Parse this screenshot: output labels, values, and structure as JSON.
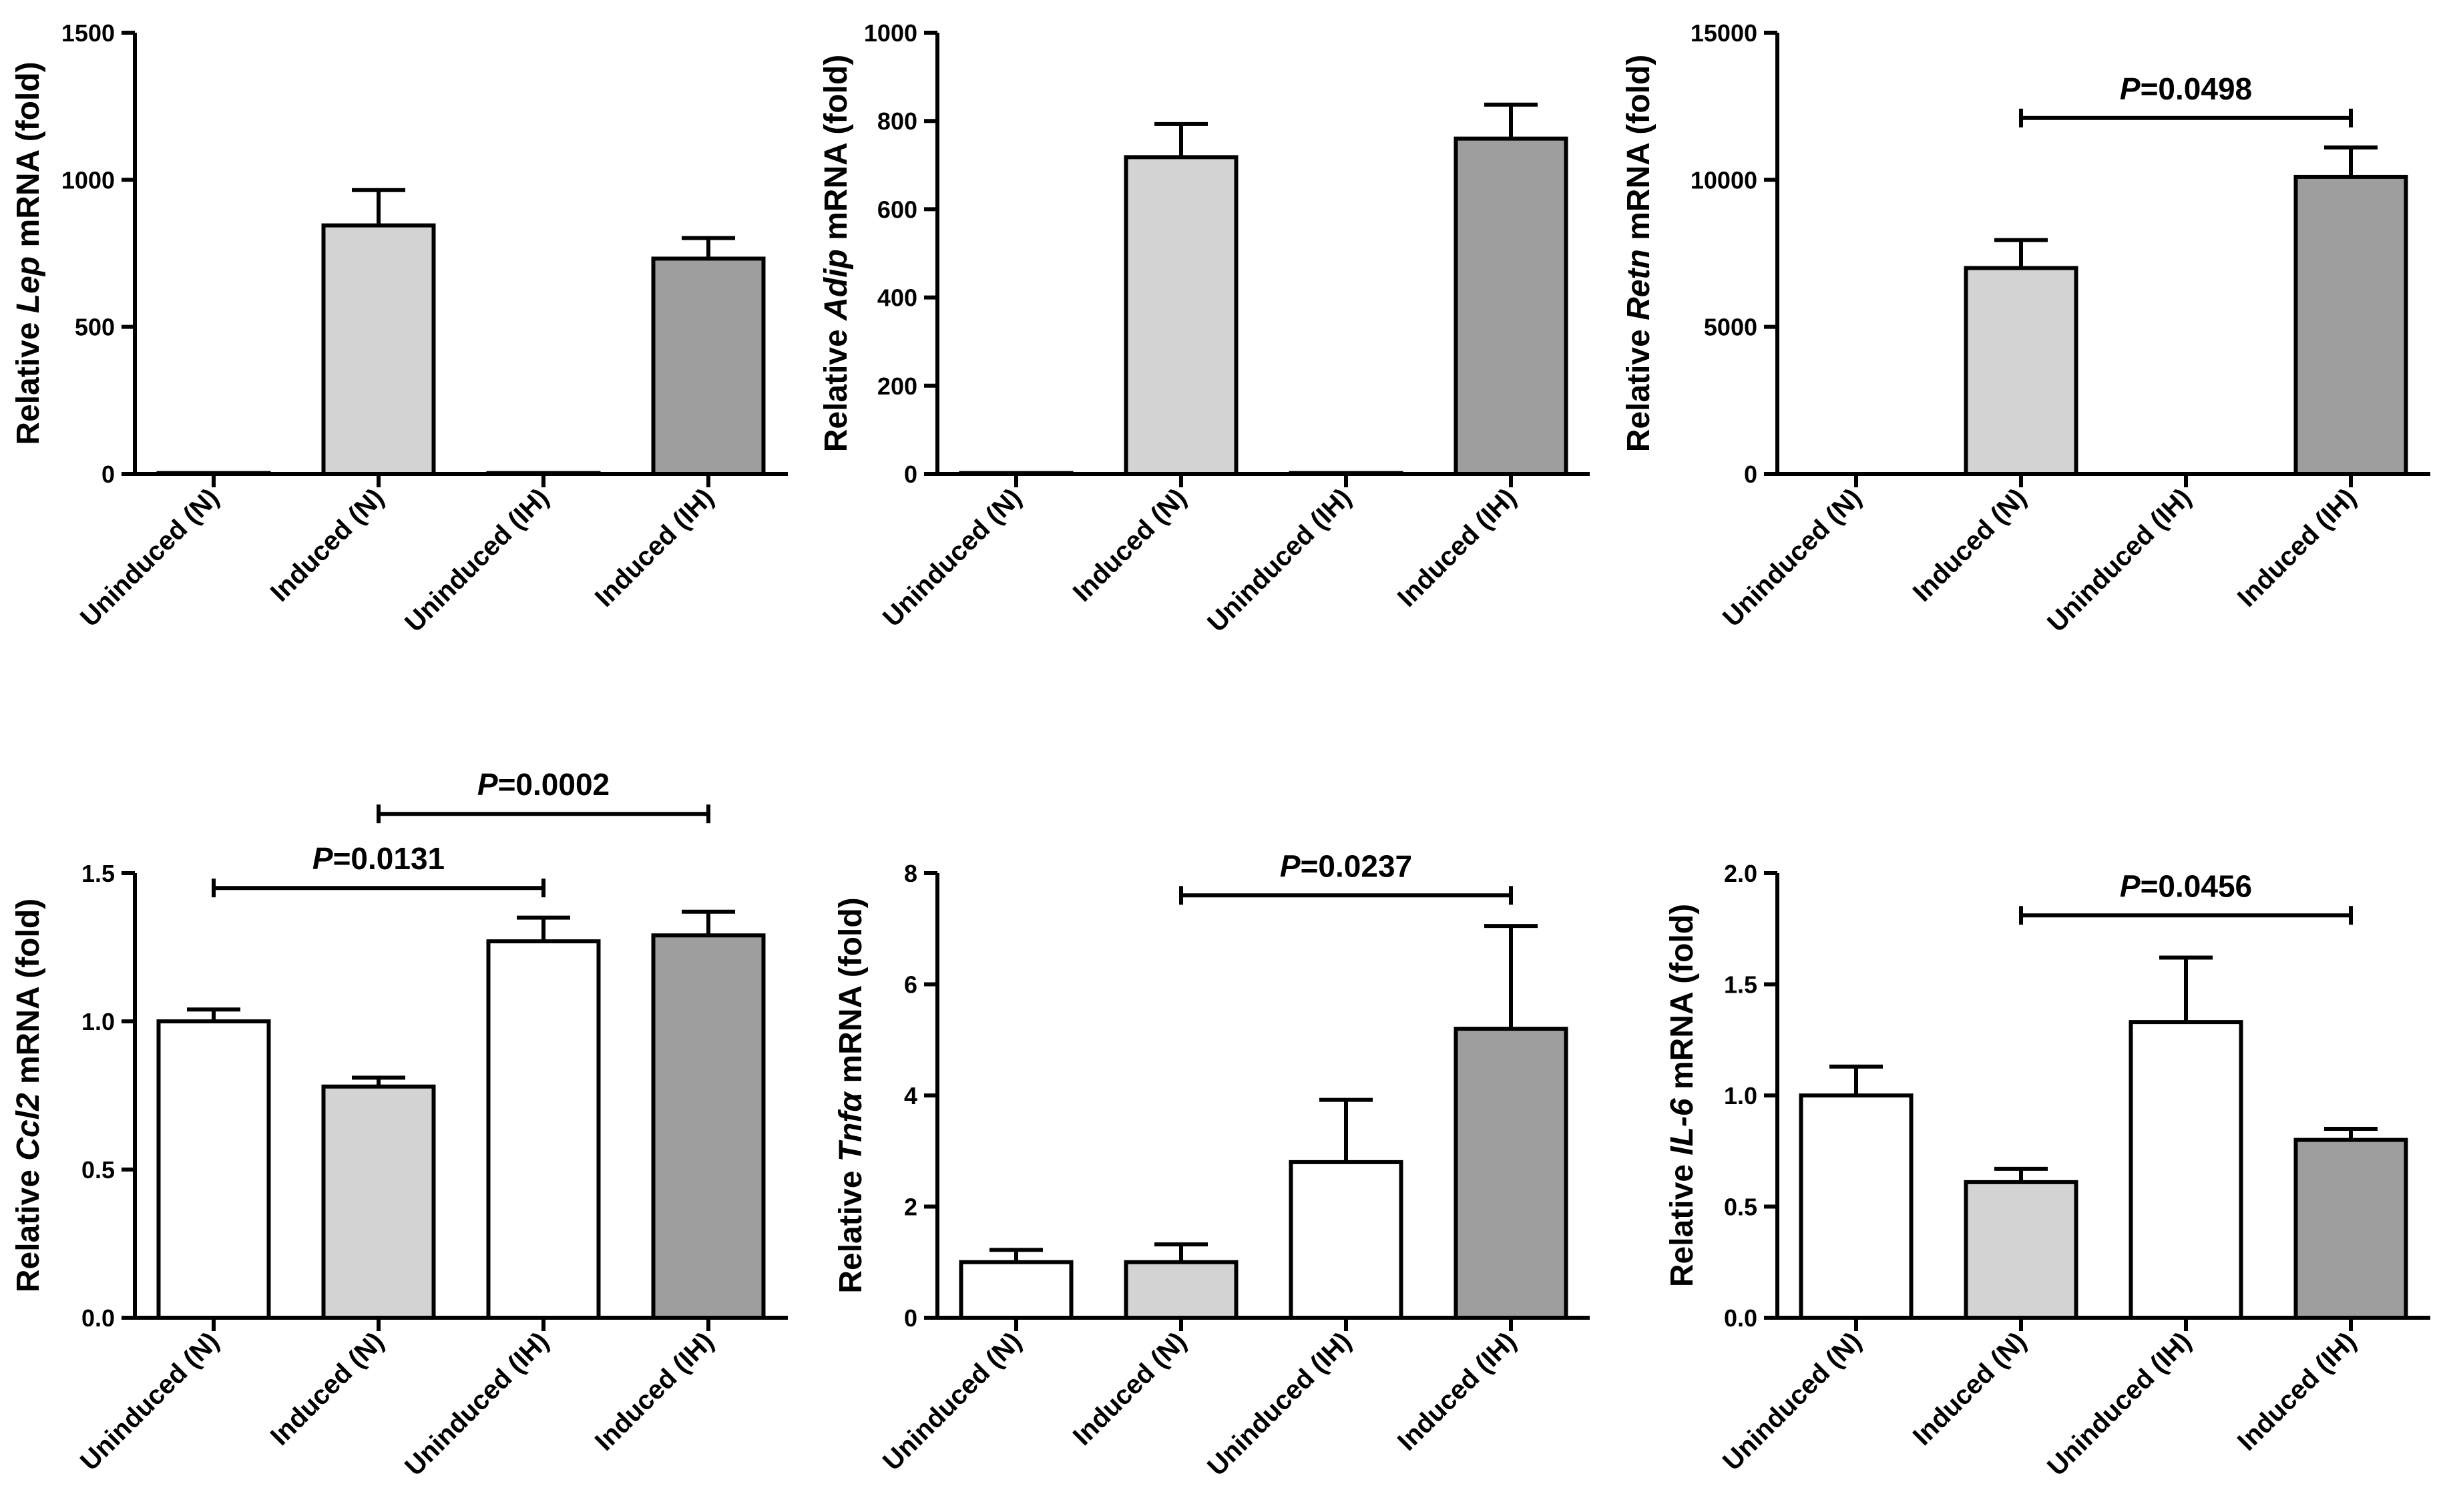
{
  "chart_data": [
    {
      "type": "bar",
      "ylabel_prefix": "Relative ",
      "ylabel_gene": "Lep",
      "ylabel_suffix": " mRNA (fold)",
      "categories": [
        "Uninduced (N)",
        "Induced (N)",
        "Uninduced (IH)",
        "Induced (IH)"
      ],
      "values": [
        3,
        845,
        3,
        732
      ],
      "errors": [
        0,
        120,
        0,
        70
      ],
      "fills": [
        "#ffffff",
        "#d3d3d3",
        "#ffffff",
        "#9e9e9e"
      ],
      "ylim": [
        0,
        1500
      ],
      "yticks": [
        0,
        500,
        1000,
        1500
      ],
      "ytick_labels": [
        "0",
        "500",
        "1000",
        "1500"
      ],
      "annotations": []
    },
    {
      "type": "bar",
      "ylabel_prefix": "Relative ",
      "ylabel_gene": "Adip",
      "ylabel_suffix": " mRNA (fold)",
      "categories": [
        "Uninduced (N)",
        "Induced (N)",
        "Uninduced (IH)",
        "Induced (IH)"
      ],
      "values": [
        2,
        718,
        2,
        760
      ],
      "errors": [
        0,
        75,
        0,
        77
      ],
      "fills": [
        "#ffffff",
        "#d3d3d3",
        "#ffffff",
        "#9e9e9e"
      ],
      "ylim": [
        0,
        1000
      ],
      "yticks": [
        0,
        200,
        400,
        600,
        800,
        1000
      ],
      "ytick_labels": [
        "0",
        "200",
        "400",
        "600",
        "800",
        "1000"
      ],
      "annotations": []
    },
    {
      "type": "bar",
      "ylabel_prefix": "Relative ",
      "ylabel_gene": "Retn",
      "ylabel_suffix": " mRNA (fold)",
      "categories": [
        "Uninduced (N)",
        "Induced (N)",
        "Uninduced (IH)",
        "Induced (IH)"
      ],
      "values": [
        0,
        7000,
        0,
        10100
      ],
      "errors": [
        0,
        950,
        0,
        1000
      ],
      "fills": [
        "#ffffff",
        "#d3d3d3",
        "#ffffff",
        "#9e9e9e"
      ],
      "ylim": [
        0,
        15000
      ],
      "yticks": [
        0,
        5000,
        10000,
        15000
      ],
      "ytick_labels": [
        "0",
        "5000",
        "10000",
        "15000"
      ],
      "annotations": [
        {
          "from": 1,
          "to": 3,
          "y": 12100,
          "p_label": "P",
          "value_label": "=0.0498"
        }
      ]
    },
    {
      "type": "bar",
      "ylabel_prefix": "Relative ",
      "ylabel_gene": "Ccl2",
      "ylabel_suffix": " mRNA (fold)",
      "categories": [
        "Uninduced (N)",
        "Induced (N)",
        "Uninduced (IH)",
        "Induced (IH)"
      ],
      "values": [
        1.0,
        0.78,
        1.27,
        1.29
      ],
      "errors": [
        0.04,
        0.03,
        0.08,
        0.08
      ],
      "fills": [
        "#ffffff",
        "#d3d3d3",
        "#ffffff",
        "#9e9e9e"
      ],
      "ylim": [
        0,
        1.5
      ],
      "yticks": [
        0,
        0.5,
        1.0,
        1.5
      ],
      "ytick_labels": [
        "0.0",
        "0.5",
        "1.0",
        "1.5"
      ],
      "annotations": [
        {
          "from": 0,
          "to": 2,
          "y": 1.45,
          "p_label": "P",
          "value_label": "=0.0131"
        },
        {
          "from": 1,
          "to": 3,
          "y": 1.7,
          "p_label": "P",
          "value_label": "=0.0002"
        }
      ]
    },
    {
      "type": "bar",
      "ylabel_prefix": "Relative ",
      "ylabel_gene": "Tnfα",
      "ylabel_suffix": " mRNA (fold)",
      "categories": [
        "Uninduced (N)",
        "Induced (N)",
        "Uninduced (IH)",
        "Induced (IH)"
      ],
      "values": [
        1.0,
        1.0,
        2.8,
        5.2
      ],
      "errors": [
        0.22,
        0.32,
        1.12,
        1.85
      ],
      "fills": [
        "#ffffff",
        "#d3d3d3",
        "#ffffff",
        "#9e9e9e"
      ],
      "ylim": [
        0,
        8
      ],
      "yticks": [
        0,
        2,
        4,
        6,
        8
      ],
      "ytick_labels": [
        "0",
        "2",
        "4",
        "6",
        "8"
      ],
      "annotations": [
        {
          "from": 1,
          "to": 3,
          "y": 7.6,
          "p_label": "P",
          "value_label": "=0.0237"
        }
      ]
    },
    {
      "type": "bar",
      "ylabel_prefix": "Relative ",
      "ylabel_gene": "IL-6",
      "ylabel_suffix": " mRNA (fold)",
      "categories": [
        "Uninduced (N)",
        "Induced (N)",
        "Uninduced (IH)",
        "Induced (IH)"
      ],
      "values": [
        1.0,
        0.61,
        1.33,
        0.8
      ],
      "errors": [
        0.13,
        0.06,
        0.29,
        0.05
      ],
      "fills": [
        "#ffffff",
        "#d3d3d3",
        "#ffffff",
        "#9e9e9e"
      ],
      "ylim": [
        0,
        2.0
      ],
      "yticks": [
        0,
        0.5,
        1.0,
        1.5,
        2.0
      ],
      "ytick_labels": [
        "0.0",
        "0.5",
        "1.0",
        "1.5",
        "2.0"
      ],
      "annotations": [
        {
          "from": 1,
          "to": 3,
          "y": 1.81,
          "p_label": "P",
          "value_label": "=0.0456"
        }
      ]
    }
  ]
}
